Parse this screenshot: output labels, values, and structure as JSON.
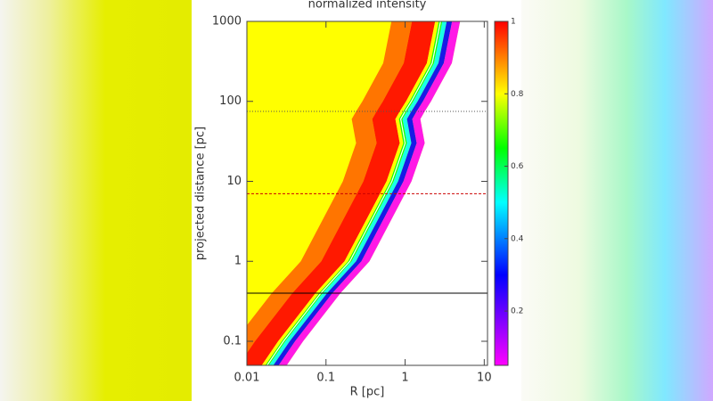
{
  "chart_data": {
    "type": "heatmap",
    "title": "normalized intensity",
    "xlabel": "R [pc]",
    "ylabel": "projected distance [pc]",
    "log_x": true,
    "log_y": true,
    "xlim": [
      0.01,
      11
    ],
    "ylim": [
      0.05,
      1000
    ],
    "xticks": [
      0.01,
      0.1,
      1,
      10
    ],
    "yticks": [
      0.1,
      1,
      10,
      100,
      1000
    ],
    "background_intensity": 0.8,
    "colorbar": {
      "lim": [
        0.05,
        1
      ],
      "ticks": [
        0.2,
        0.4,
        0.6,
        0.8,
        1
      ],
      "colormap": [
        {
          "value": 0.05,
          "color": "#ff00ff"
        },
        {
          "value": 0.3,
          "color": "#0000ff"
        },
        {
          "value": 0.5,
          "color": "#00ffff"
        },
        {
          "value": 0.65,
          "color": "#00ff00"
        },
        {
          "value": 0.8,
          "color": "#ffff00"
        },
        {
          "value": 1,
          "color": "#ff0000"
        }
      ]
    },
    "contour": {
      "color": "#ffffff",
      "x": [
        0.018,
        0.029,
        0.086,
        0.2,
        0.68,
        1.0,
        0.88,
        1.0,
        1.2,
        2.2,
        2.8
      ],
      "y": [
        0.05,
        0.1,
        0.4,
        1,
        10,
        30,
        60,
        75,
        100,
        300,
        1000
      ]
    },
    "hlines": [
      {
        "value": 75,
        "style": "dotted",
        "color": "#555555"
      },
      {
        "value": 7,
        "style": "dashed",
        "color": "#cc0000"
      },
      {
        "value": 0.4,
        "style": "solid",
        "color": "#000000"
      }
    ]
  }
}
